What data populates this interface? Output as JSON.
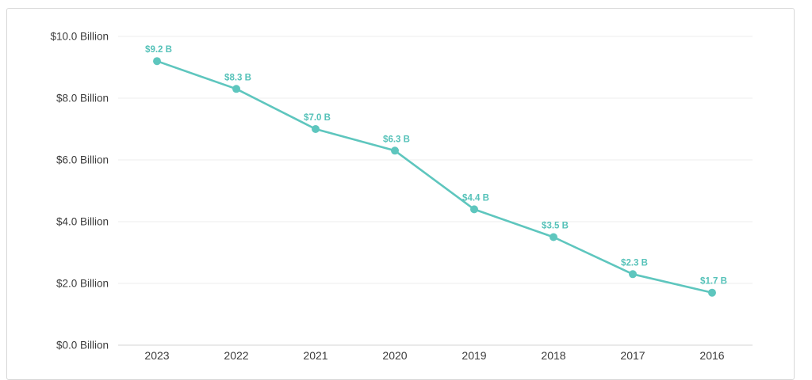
{
  "chart_data": {
    "type": "line",
    "categories": [
      "2023",
      "2022",
      "2021",
      "2020",
      "2019",
      "2018",
      "2017",
      "2016"
    ],
    "values": [
      9.2,
      8.3,
      7.0,
      6.3,
      4.4,
      3.5,
      2.3,
      1.7
    ],
    "point_labels": [
      "$9.2 B",
      "$8.3 B",
      "$7.0 B",
      "$6.3 B",
      "$4.4 B",
      "$3.5 B",
      "$2.3 B",
      "$1.7 B"
    ],
    "y_ticks": [
      0,
      2,
      4,
      6,
      8,
      10
    ],
    "y_tick_labels": [
      "$0.0 Billion",
      "$2.0 Billion",
      "$4.0 Billion",
      "$6.0 Billion",
      "$8.0 Billion",
      "$10.0 Billion"
    ],
    "ylim": [
      0,
      10
    ],
    "title": "",
    "xlabel": "",
    "ylabel": "",
    "grid": true,
    "legend": "none",
    "colors": {
      "line": "#5ec6be",
      "marker": "#5ec6be",
      "point_label": "#56c2b9",
      "axis_text": "#3b3b3b",
      "gridline": "#eeeeee",
      "axis_line": "#d6d6d6"
    }
  }
}
